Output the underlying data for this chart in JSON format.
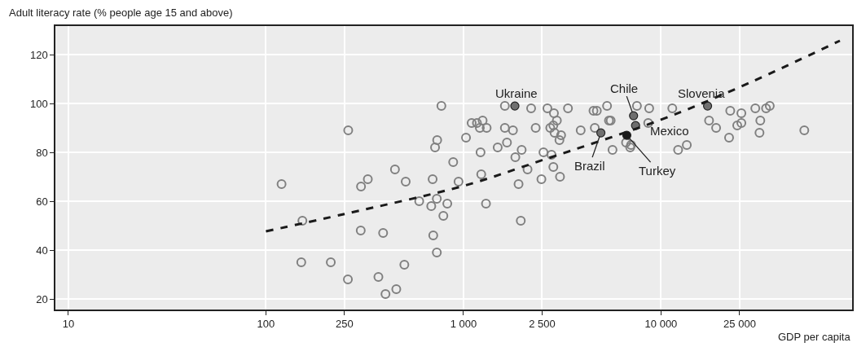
{
  "chart_data": {
    "type": "scatter",
    "ylabel": "Adult literacy rate (% people age 15 and above)",
    "xlabel": "GDP per capita",
    "log": "x",
    "grid": true,
    "xlim": [
      8.6,
      92700
    ],
    "ylim": [
      15.7,
      131.7
    ],
    "xticks": [
      10,
      100,
      250,
      {
        "value": 1000,
        "label": "1 000"
      },
      {
        "value": 2500,
        "label": "2 500"
      },
      {
        "value": 10000,
        "label": "10 000"
      },
      {
        "value": 25000,
        "label": "25 000"
      }
    ],
    "yticks": [
      20,
      40,
      60,
      80,
      100,
      120
    ],
    "series": [
      {
        "color": "#808080",
        "marker": "circle",
        "x": [
          120,
          153,
          151,
          213,
          773,
          261,
          736,
          718,
          1030,
          887,
          450,
          328,
          303,
          510,
          698,
          944,
          597,
          733,
          687,
          828,
          791,
          302,
          392,
          703,
          733,
          502,
          260,
          371,
          403,
          457,
          1620,
          2200,
          2660,
          3380,
          2870,
          2970,
          2850,
          2750,
          2890,
          3120,
          3060,
          1100,
          1170,
          1250,
          1210,
          1310,
          1620,
          1780,
          2320,
          1660,
          1490,
          1970,
          1830,
          1220,
          2540,
          2790,
          2110,
          2850,
          1230,
          1900,
          2480,
          3080,
          1300,
          1950,
          4550,
          4730,
          5330,
          7550,
          8710,
          11400,
          5450,
          5560,
          3920,
          4620,
          8610,
          6650,
          7050,
          6980,
          5680,
          12200,
          13500,
          22400,
          25500,
          30000,
          34000,
          35500,
          17500,
          19000,
          24300,
          25500,
          31800,
          22100,
          31500,
          53100
        ],
        "values": [
          67,
          52,
          35,
          35,
          99,
          89,
          85,
          82,
          86,
          76,
          73,
          69,
          66,
          68,
          69,
          68,
          60,
          61,
          58,
          59,
          54,
          48,
          47,
          46,
          39,
          34,
          28,
          29,
          22,
          24,
          99,
          98,
          98,
          98,
          96,
          93,
          91,
          90,
          88,
          87,
          85,
          92,
          92,
          93,
          90,
          90,
          90,
          89,
          90,
          84,
          82,
          81,
          78,
          80,
          80,
          79,
          73,
          74,
          71,
          67,
          69,
          70,
          59,
          52,
          97,
          97,
          99,
          99,
          98,
          98,
          93,
          93,
          89,
          90,
          92,
          84,
          83,
          82,
          81,
          81,
          83,
          97,
          96,
          98,
          98,
          99,
          93,
          90,
          91,
          92,
          93,
          86,
          88,
          89
        ]
      },
      {
        "marker": "circle",
        "colors": [
          "#707070",
          "#6e6e6e",
          "#707070",
          "#6e6e6e",
          "#707070",
          "#1a1a1a"
        ],
        "x": [
          1820,
          7260,
          17200,
          7430,
          4960,
          6710
        ],
        "values": [
          99,
          95,
          99,
          91,
          88,
          87
        ]
      },
      {
        "type": "line",
        "color": "#1a1a1a",
        "line_style": "dashed",
        "marker": "none",
        "x": [
          100,
          250,
          1000,
          2500,
          10000,
          25000,
          80400
        ],
        "values": [
          47.7,
          54.8,
          66.3,
          76.8,
          93.4,
          106.7,
          125.7
        ]
      }
    ],
    "annotations": [
      {
        "text": "Ukraine",
        "x": 1820,
        "y": 99
      },
      {
        "text": "Chile",
        "x": 7260,
        "y": 95
      },
      {
        "text": "Slovenia",
        "x": 17200,
        "y": 99
      },
      {
        "text": "Mexico",
        "x": 7430,
        "y": 91
      },
      {
        "text": "Brazil",
        "x": 4960,
        "y": 88
      },
      {
        "text": "Turkey",
        "x": 6710,
        "y": 87
      }
    ]
  }
}
